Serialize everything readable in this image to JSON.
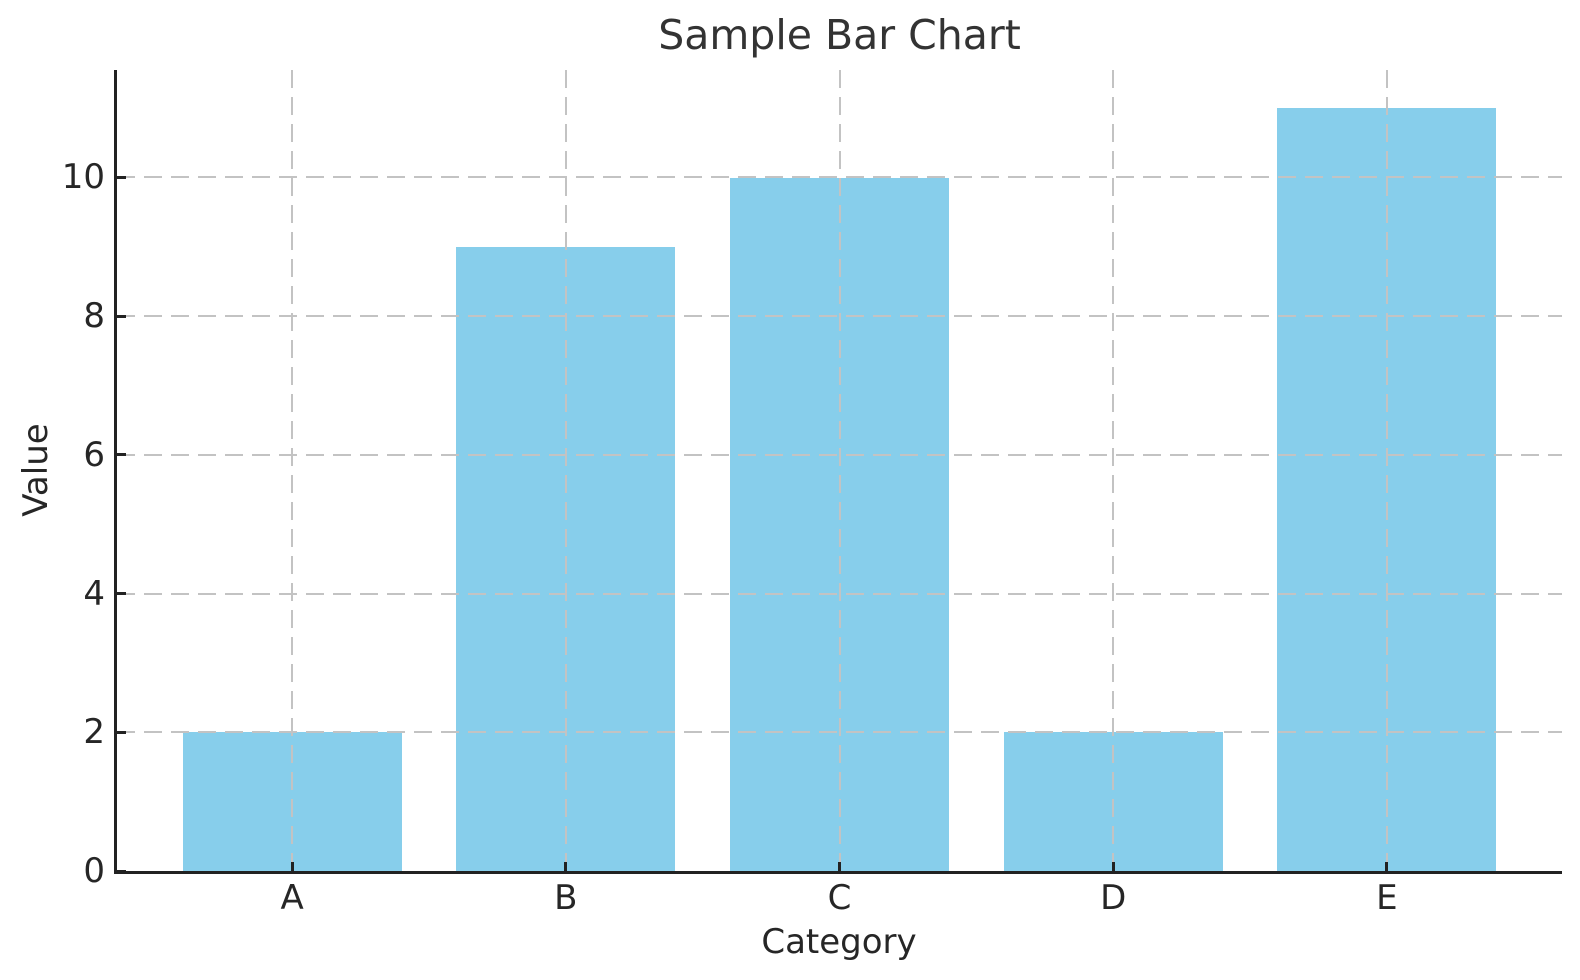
{
  "figure": {
    "background": "#ffffff",
    "text_color": "#262626",
    "title_color": "#333333"
  },
  "chart_data": {
    "type": "bar",
    "title": "Sample Bar Chart",
    "xlabel": "Category",
    "ylabel": "Value",
    "categories": [
      "A",
      "B",
      "C",
      "D",
      "E"
    ],
    "values": [
      2,
      9,
      10,
      2,
      11
    ],
    "yticks": [
      0,
      2,
      4,
      6,
      8,
      10
    ],
    "ylim": [
      0,
      11.55
    ],
    "bar_color": "#87CEEB",
    "bar_width_fraction": 0.8,
    "grid": true,
    "grid_line_style": "dashed",
    "grid_color": "#c3c3c3",
    "grid_on_top_of_bars": true,
    "axis_color": "#222222",
    "tick_direction": "in",
    "legend_position": "none"
  }
}
